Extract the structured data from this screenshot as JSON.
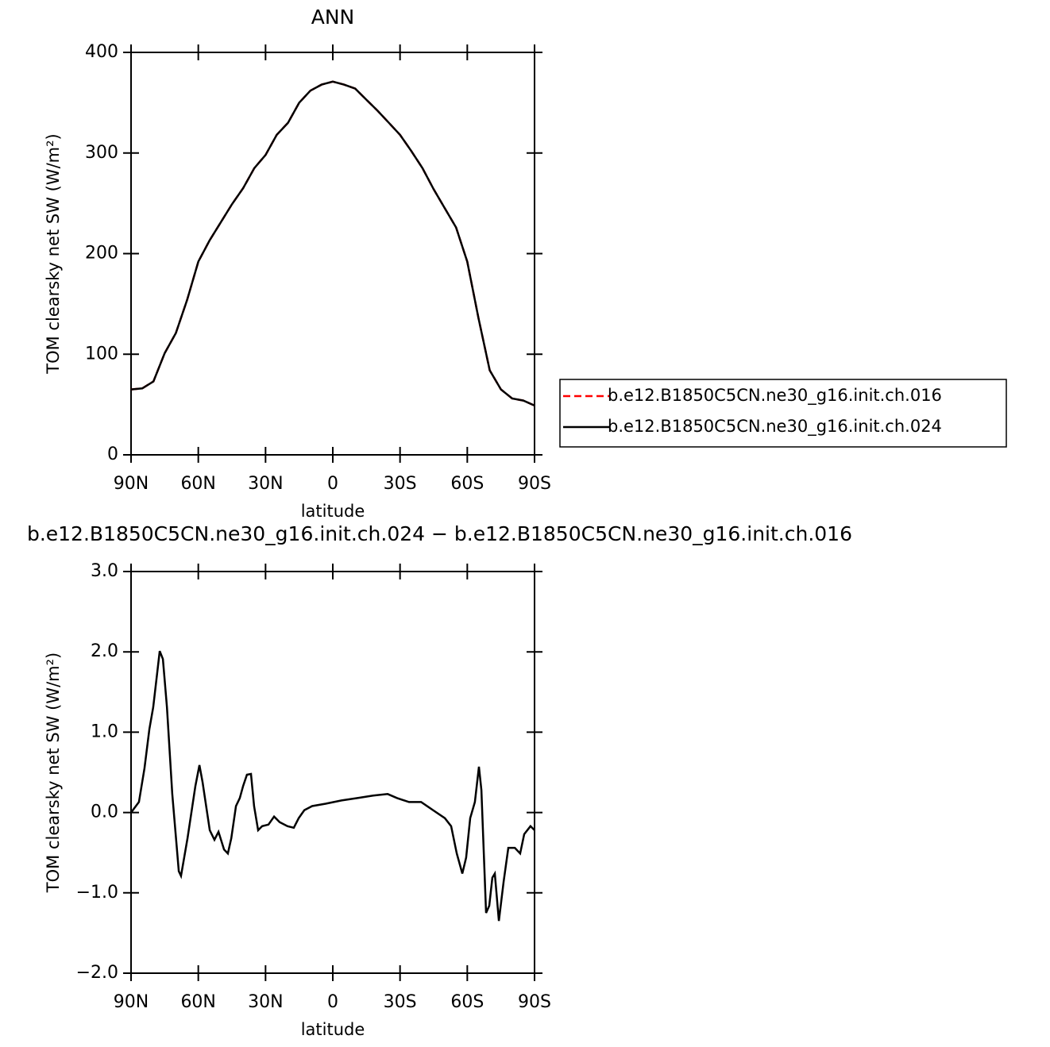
{
  "chart_data": [
    {
      "type": "line",
      "title": "ANN",
      "xlabel": "latitude",
      "ylabel": "TOM clearsky net SW (W/m²)",
      "x": [
        90,
        85,
        80,
        75,
        70,
        65,
        60,
        55,
        50,
        45,
        40,
        35,
        30,
        25,
        20,
        15,
        10,
        5,
        0,
        -5,
        -10,
        -15,
        -20,
        -25,
        -30,
        -35,
        -40,
        -45,
        -50,
        -55,
        -60,
        -65,
        -70,
        -75,
        -80,
        -85,
        -90
      ],
      "series": [
        {
          "name": "b.e12.B1850C5CN.ne30_g16.init.ch.016",
          "color": "#ff0000",
          "dashed": true,
          "values": [
            65,
            66,
            73,
            101,
            121,
            154,
            192,
            213,
            231,
            249,
            265,
            285,
            298,
            318,
            330,
            350,
            362,
            368,
            371,
            368,
            364,
            353,
            342,
            330,
            318,
            302,
            285,
            264,
            245,
            226,
            192,
            136,
            84,
            65,
            56,
            54,
            49
          ]
        },
        {
          "name": "b.e12.B1850C5CN.ne30_g16.init.ch.024",
          "color": "#000000",
          "dashed": false,
          "values": [
            65,
            66,
            73,
            101,
            121,
            154,
            192,
            213,
            231,
            249,
            265,
            285,
            298,
            318,
            330,
            350,
            362,
            368,
            371,
            368,
            364,
            353,
            342,
            330,
            318,
            302,
            285,
            264,
            245,
            226,
            192,
            136,
            84,
            65,
            56,
            54,
            49
          ]
        }
      ],
      "xlim": [
        90,
        -90
      ],
      "xticks": [
        {
          "value": 90,
          "label": "90N"
        },
        {
          "value": 60,
          "label": "60N"
        },
        {
          "value": 30,
          "label": "30N"
        },
        0,
        {
          "value": -30,
          "label": "30S"
        },
        {
          "value": -60,
          "label": "60S"
        },
        {
          "value": -90,
          "label": "90S"
        }
      ],
      "ylim": [
        0,
        400
      ],
      "yticks": [
        0,
        100,
        200,
        300,
        400
      ],
      "legend": "right"
    },
    {
      "type": "line",
      "title": "b.e12.B1850C5CN.ne30_g16.init.ch.024 − b.e12.B1850C5CN.ne30_g16.init.ch.016",
      "xlabel": "latitude",
      "ylabel": "TOM clearsky net SW (W/m²)",
      "x": [
        90,
        86.5,
        84,
        81.8,
        80.1,
        77.2,
        75.8,
        74,
        71.6,
        68.7,
        67.7,
        64.8,
        61.3,
        59.5,
        58.1,
        54.9,
        52.8,
        51,
        48.5,
        46.8,
        45.3,
        43.2,
        41.5,
        40,
        38.3,
        36.5,
        35.1,
        33.3,
        31.5,
        28.7,
        26.2,
        23.7,
        20.2,
        17.4,
        15.2,
        12.7,
        9.2,
        3.2,
        -3.9,
        -11,
        -18,
        -24.5,
        -28.7,
        -34,
        -39.4,
        -44.7,
        -50,
        -52.8,
        -55.3,
        -57.8,
        -59.5,
        -61.3,
        -63.4,
        -65.2,
        -66.3,
        -68.4,
        -69.8,
        -71.2,
        -72.3,
        -74.1,
        -76.2,
        -78.3,
        -81.2,
        -83.6,
        -85.4,
        -88.2,
        -90
      ],
      "series": [
        {
          "color": "#000000",
          "dashed": false,
          "values": [
            0.0,
            0.13,
            0.55,
            1.04,
            1.31,
            2.01,
            1.91,
            1.31,
            0.23,
            -0.73,
            -0.79,
            -0.32,
            0.33,
            0.59,
            0.38,
            -0.22,
            -0.34,
            -0.24,
            -0.46,
            -0.51,
            -0.32,
            0.08,
            0.18,
            0.33,
            0.47,
            0.48,
            0.08,
            -0.22,
            -0.17,
            -0.15,
            -0.05,
            -0.12,
            -0.17,
            -0.19,
            -0.07,
            0.03,
            0.08,
            0.11,
            0.15,
            0.18,
            0.21,
            0.23,
            0.18,
            0.13,
            0.13,
            0.03,
            -0.07,
            -0.17,
            -0.51,
            -0.76,
            -0.56,
            -0.07,
            0.13,
            0.57,
            0.28,
            -1.25,
            -1.16,
            -0.81,
            -0.76,
            -1.35,
            -0.86,
            -0.44,
            -0.44,
            -0.51,
            -0.27,
            -0.17,
            -0.22
          ]
        }
      ],
      "xlim": [
        90,
        -90
      ],
      "xticks": [
        {
          "value": 90,
          "label": "90N"
        },
        {
          "value": 60,
          "label": "60N"
        },
        {
          "value": 30,
          "label": "30N"
        },
        0,
        {
          "value": -30,
          "label": "30S"
        },
        {
          "value": -60,
          "label": "60S"
        },
        {
          "value": -90,
          "label": "90S"
        }
      ],
      "ylim": [
        -2,
        3
      ],
      "yticks": [
        {
          "value": -2,
          "label": "−2.0"
        },
        {
          "value": -1,
          "label": "−1.0"
        },
        {
          "value": 0,
          "label": "0.0"
        },
        {
          "value": 1,
          "label": "1.0"
        },
        {
          "value": 2,
          "label": "2.0"
        },
        {
          "value": 3,
          "label": "3.0"
        }
      ]
    }
  ]
}
